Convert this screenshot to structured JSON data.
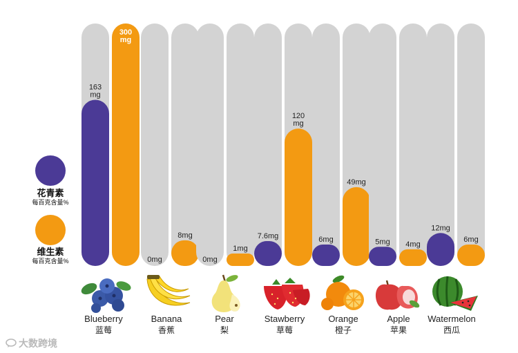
{
  "legend": [
    {
      "title": "花青素",
      "subtitle": "每百克含量%",
      "color": "#4b3a96"
    },
    {
      "title": "维生素",
      "subtitle": "每百克含量%",
      "color": "#f39a12"
    }
  ],
  "watermark": "大数跨境",
  "colors": {
    "anthocyanin": "#4b3a96",
    "vitamin": "#f39a12",
    "track": "#d3d3d3"
  },
  "chart_data": {
    "type": "bar",
    "categories": [
      "Blueberry",
      "Banana",
      "Pear",
      "Stawberry",
      "Orange",
      "Apple",
      "Watermelon"
    ],
    "categories_zh": [
      "蓝莓",
      "香蕉",
      "梨",
      "草莓",
      "橙子",
      "苹果",
      "西瓜"
    ],
    "series": [
      {
        "name": "花青素",
        "values": [
          163,
          0,
          0,
          7.6,
          6,
          5,
          12
        ],
        "labels": [
          "163 mg",
          "0mg",
          "0mg",
          "7.6mg",
          "6mg",
          "5mg",
          "12mg"
        ]
      },
      {
        "name": "维生素",
        "values": [
          300,
          8,
          1,
          120,
          49,
          4,
          6
        ],
        "labels": [
          "300 mg",
          "8mg",
          "1mg",
          "120 mg",
          "49mg",
          "4mg",
          "6mg"
        ]
      }
    ],
    "icons": [
      "blueberry-icon",
      "banana-icon",
      "pear-icon",
      "strawberry-icon",
      "orange-icon",
      "apple-icon",
      "watermelon-icon"
    ]
  }
}
